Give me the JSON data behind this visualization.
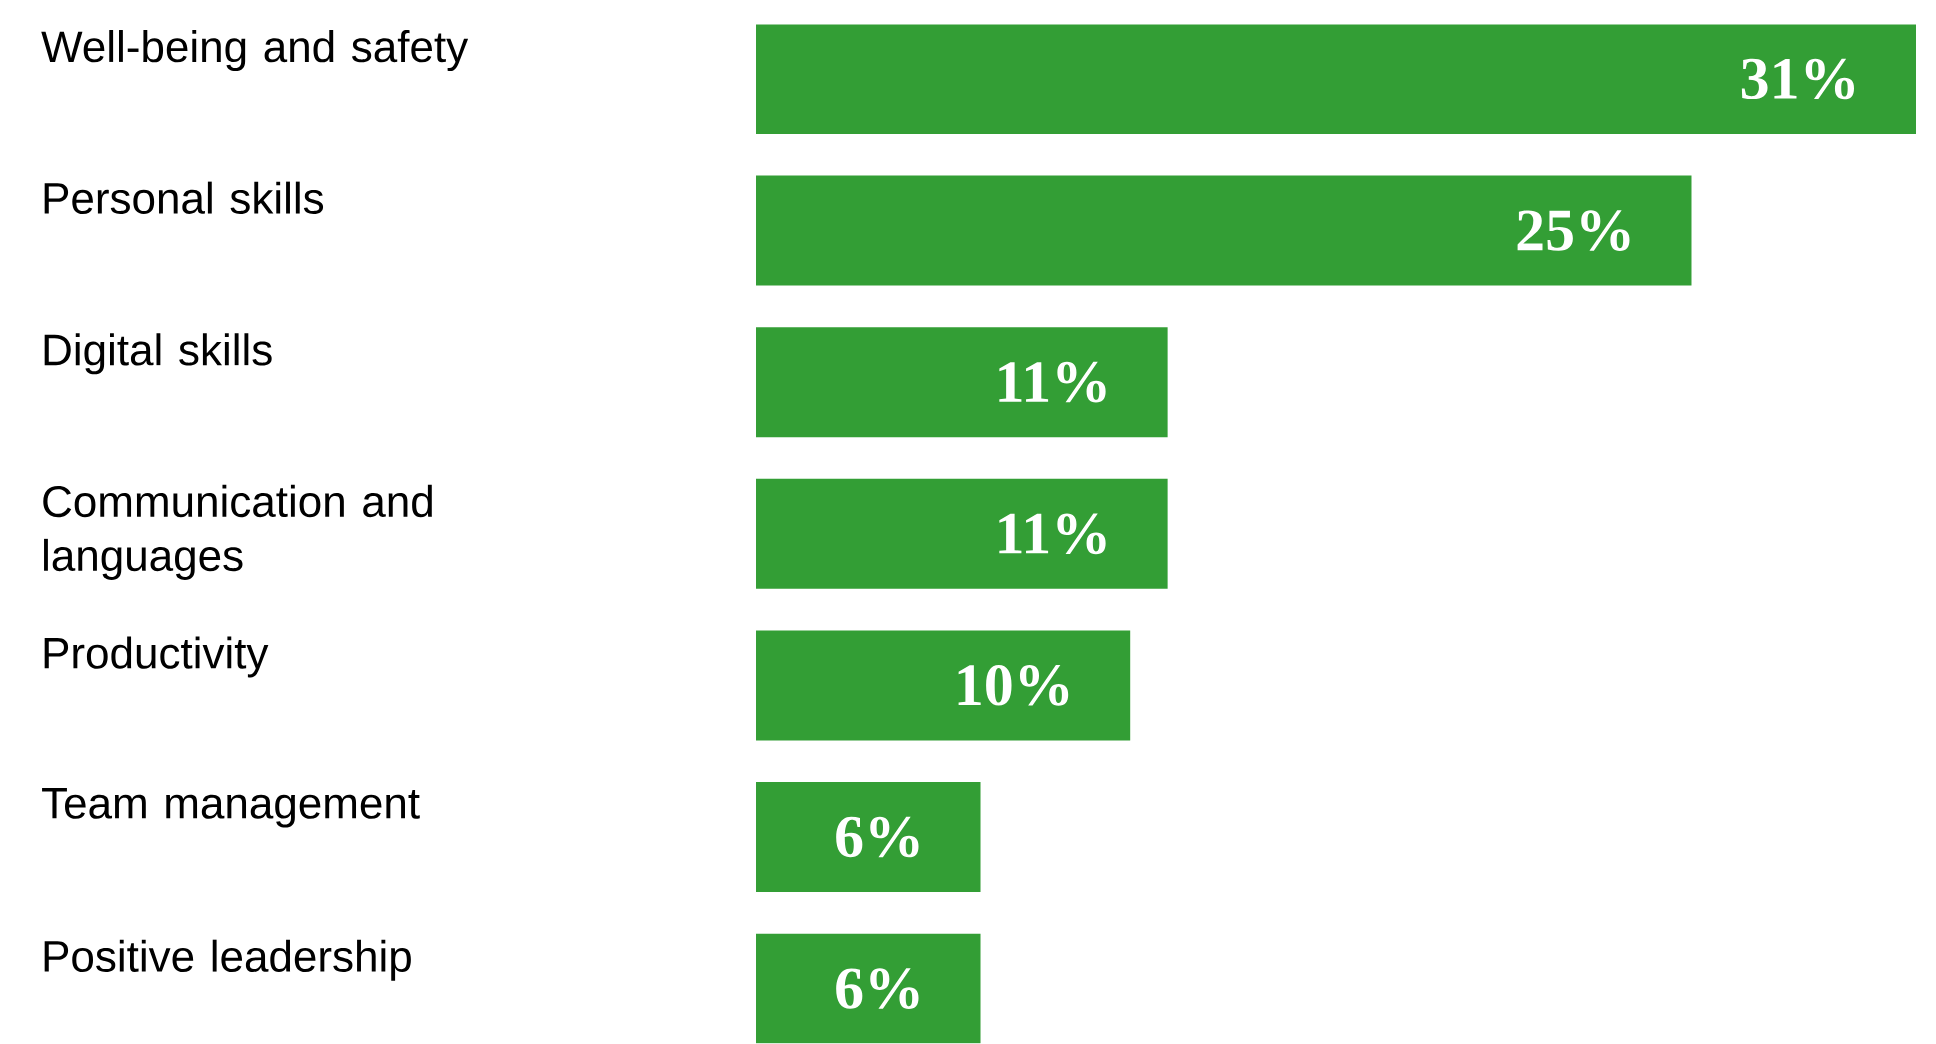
{
  "chart_data": {
    "type": "bar",
    "orientation": "horizontal",
    "categories": [
      "Well-being and safety",
      "Personal skills",
      "Digital skills",
      "Communication and languages",
      "Productivity",
      "Team management",
      "Positive leadership"
    ],
    "values": [
      31,
      25,
      11,
      11,
      10,
      6,
      6
    ],
    "value_labels": [
      "31%",
      "25%",
      "11%",
      "11%",
      "10%",
      "6%",
      "6%"
    ],
    "color": "#339e35",
    "tick_labels": "y"
  }
}
